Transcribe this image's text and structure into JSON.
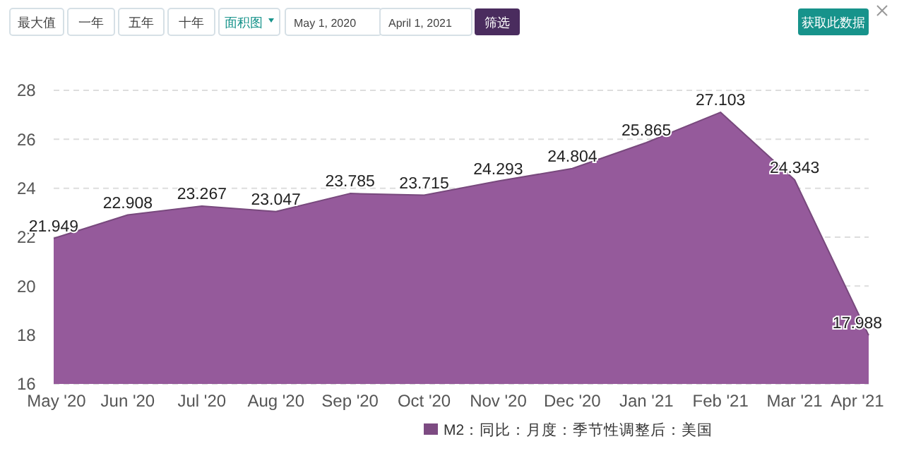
{
  "chart_data": {
    "type": "area",
    "categories": [
      "May '20",
      "Jun '20",
      "Jul '20",
      "Aug '20",
      "Sep '20",
      "Oct '20",
      "Nov '20",
      "Dec '20",
      "Jan '21",
      "Feb '21",
      "Mar '21",
      "Apr '21"
    ],
    "series": [
      {
        "name": "M2：同比：月度：季节性调整后：美国",
        "color": "#955a9b",
        "values": [
          21.949,
          22.908,
          23.267,
          23.047,
          23.785,
          23.715,
          24.293,
          24.804,
          25.865,
          27.103,
          24.343,
          17.988
        ]
      }
    ],
    "ylim": [
      16,
      28
    ],
    "yticks": [
      16,
      18,
      20,
      22,
      24,
      26,
      28
    ],
    "grid": "y",
    "data_labels": true,
    "legend": "bottom",
    "annotations": [
      "最大值",
      "一年",
      "五年",
      "十年",
      "面积图",
      "May 1, 2020",
      "April 1, 2021",
      "筛选",
      "获取此数据"
    ]
  }
}
